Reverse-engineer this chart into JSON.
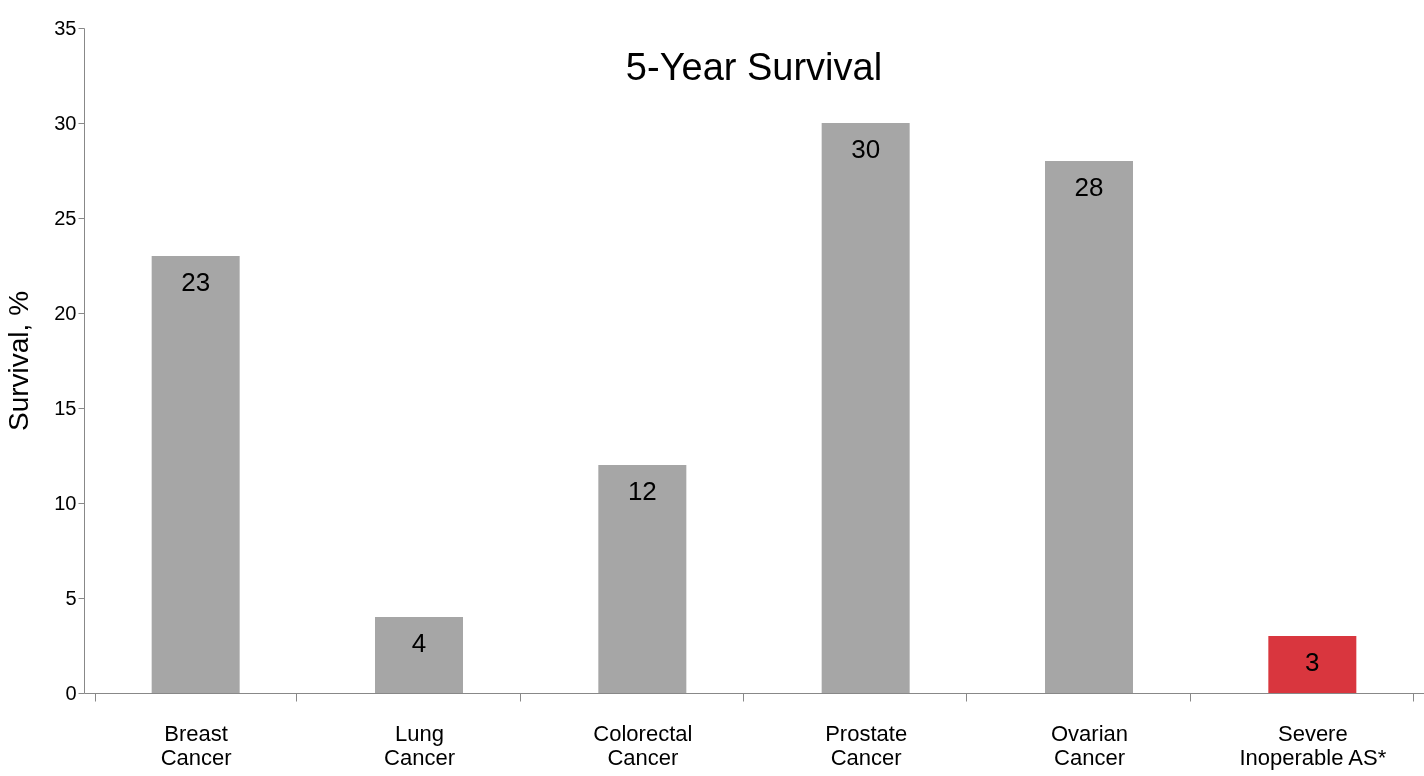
{
  "chart_data": {
    "type": "bar",
    "title": "5-Year Survival",
    "ylabel": "Survival, %",
    "categories": [
      "Breast Cancer",
      "Lung Cancer",
      "Colorectal Cancer",
      "Prostate Cancer",
      "Ovarian Cancer",
      "Severe Inoperable AS*"
    ],
    "values": [
      23,
      4,
      12,
      30,
      28,
      3
    ],
    "colors": [
      "#a6a6a6",
      "#a6a6a6",
      "#a6a6a6",
      "#a6a6a6",
      "#a6a6a6",
      "#d9363e"
    ],
    "ylim": [
      0,
      35
    ],
    "yticks": [
      0,
      5,
      10,
      15,
      20,
      25,
      30,
      35
    ],
    "grid": false,
    "data_labels": true
  }
}
